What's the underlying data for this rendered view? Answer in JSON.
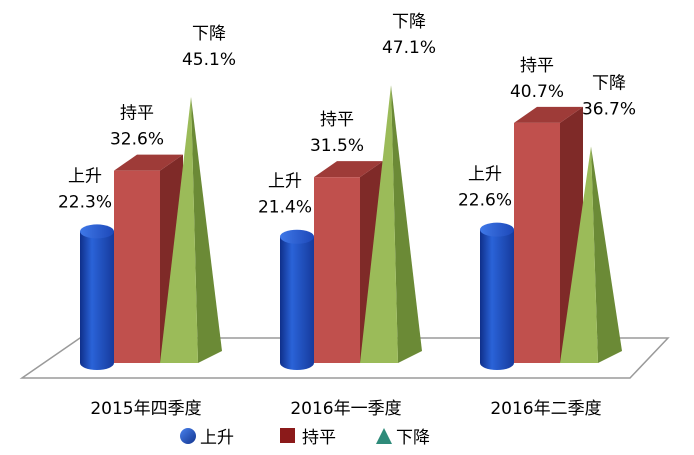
{
  "chart_data": {
    "type": "bar",
    "categories": [
      "2015年四季度",
      "2016年一季度",
      "2016年二季度"
    ],
    "series": [
      {
        "name": "上升",
        "values": [
          22.3,
          21.4,
          22.6
        ],
        "color": "#1F4FC0",
        "shape": "cylinder"
      },
      {
        "name": "持平",
        "values": [
          32.6,
          31.5,
          40.7
        ],
        "color": "#C0504D",
        "shape": "box"
      },
      {
        "name": "下降",
        "values": [
          45.1,
          47.1,
          36.7
        ],
        "color": "#9BBB59",
        "shape": "pyramid"
      }
    ],
    "data_labels": [
      [
        "22.3%",
        "32.6%",
        "45.1%"
      ],
      [
        "21.4%",
        "31.5%",
        "47.1%"
      ],
      [
        "22.6%",
        "40.7%",
        "36.7%"
      ]
    ],
    "title": "",
    "xlabel": "",
    "ylabel": "",
    "ylim": [
      0,
      50
    ],
    "grid": false,
    "legend_position": "bottom",
    "legend_marker_colors": [
      "#1F4FC0",
      "#8B1A1A",
      "#2E8B7A"
    ]
  }
}
